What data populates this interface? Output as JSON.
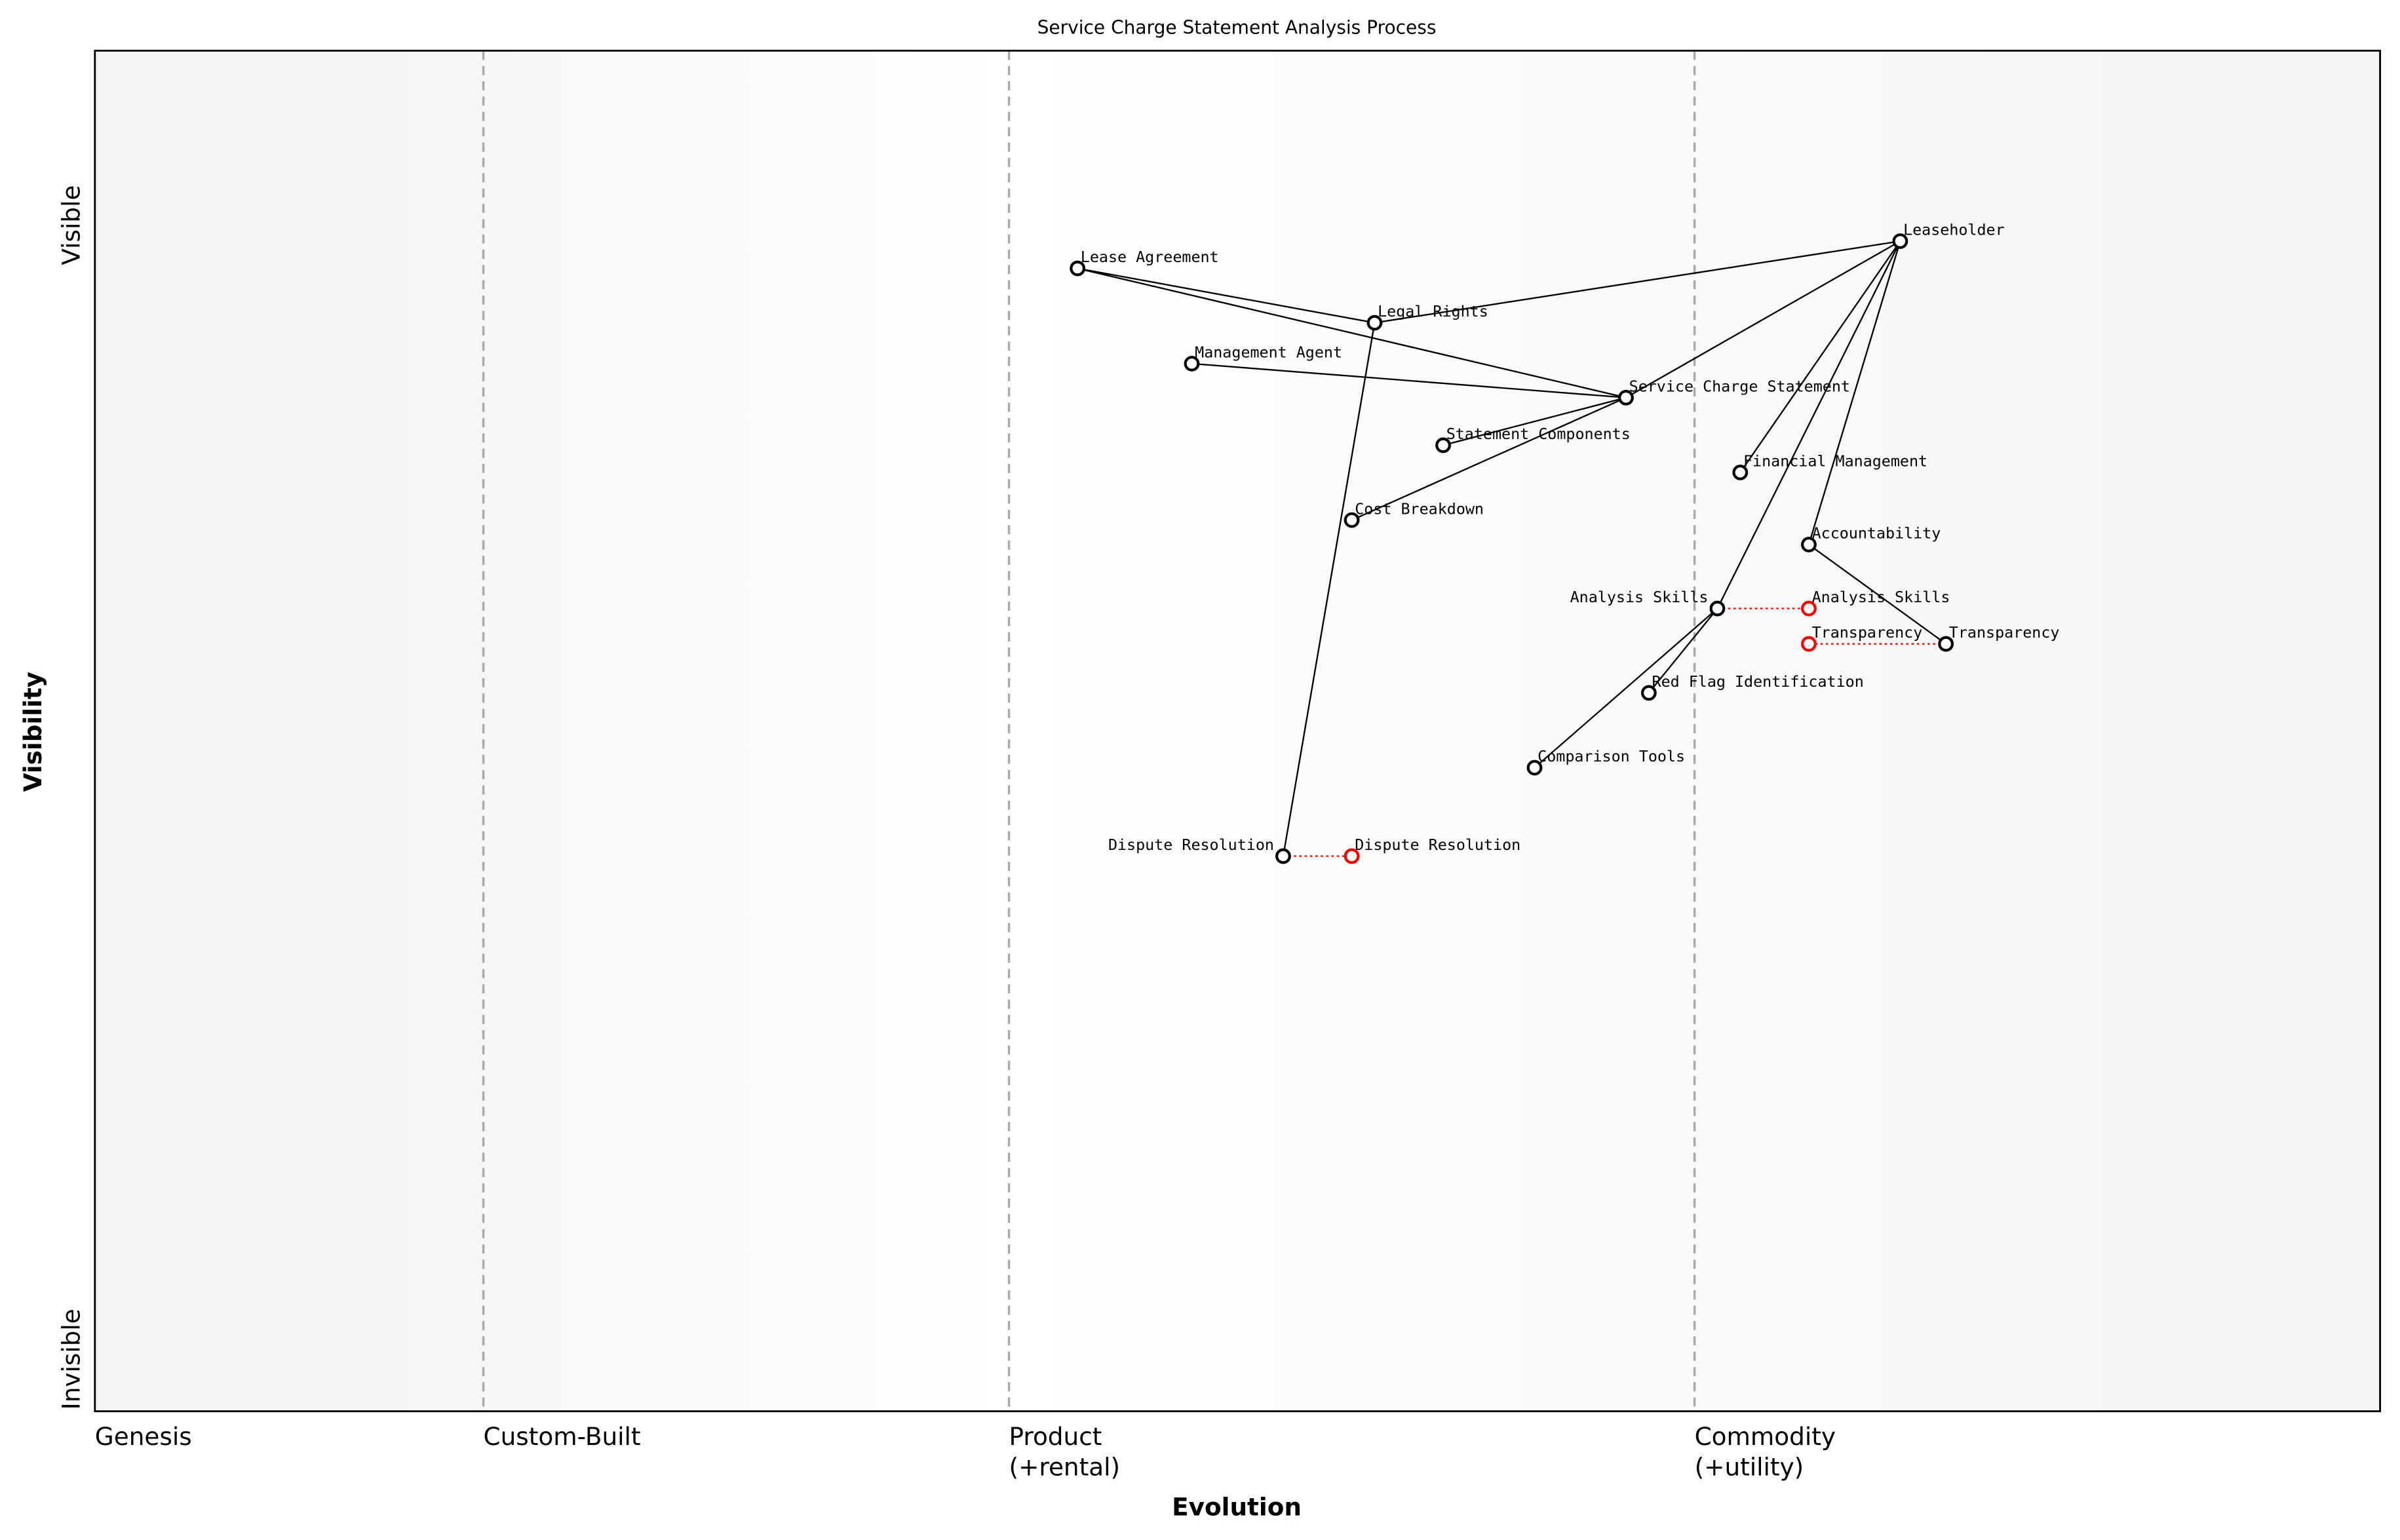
{
  "chart_data": {
    "type": "wardley-map",
    "title": "Service Charge Statement Analysis Process",
    "xlabel": "Evolution",
    "ylabel": "Visibility",
    "y_ticks": {
      "top": "Visible",
      "bottom": "Invisible"
    },
    "x_stages": [
      {
        "label": "Genesis",
        "at": 0.0
      },
      {
        "label": "Custom-Built",
        "at": 0.17
      },
      {
        "label": "Product\n(+rental)",
        "at": 0.4
      },
      {
        "label": "Commodity\n(+utility)",
        "at": 0.7
      }
    ],
    "xlim": [
      0,
      1
    ],
    "ylim": [
      0,
      1
    ],
    "components": [
      {
        "id": "leaseholder",
        "name": "Leaseholder",
        "evolution": 0.79,
        "visibility": 0.86
      },
      {
        "id": "lease-agreement",
        "name": "Lease Agreement",
        "evolution": 0.43,
        "visibility": 0.84
      },
      {
        "id": "legal-rights",
        "name": "Legal Rights",
        "evolution": 0.56,
        "visibility": 0.8
      },
      {
        "id": "management-agent",
        "name": "Management Agent",
        "evolution": 0.48,
        "visibility": 0.77
      },
      {
        "id": "service-charge-statement",
        "name": "Service Charge Statement",
        "evolution": 0.67,
        "visibility": 0.745
      },
      {
        "id": "statement-components",
        "name": "Statement Components",
        "evolution": 0.59,
        "visibility": 0.71
      },
      {
        "id": "financial-management",
        "name": "Financial Management",
        "evolution": 0.72,
        "visibility": 0.69
      },
      {
        "id": "cost-breakdown",
        "name": "Cost Breakdown",
        "evolution": 0.55,
        "visibility": 0.655
      },
      {
        "id": "accountability",
        "name": "Accountability",
        "evolution": 0.75,
        "visibility": 0.637
      },
      {
        "id": "analysis-skills",
        "name": "Analysis Skills",
        "evolution": 0.71,
        "visibility": 0.59
      },
      {
        "id": "transparency",
        "name": "Transparency",
        "evolution": 0.81,
        "visibility": 0.564
      },
      {
        "id": "red-flag-identification",
        "name": "Red Flag Identification",
        "evolution": 0.68,
        "visibility": 0.528
      },
      {
        "id": "comparison-tools",
        "name": "Comparison Tools",
        "evolution": 0.63,
        "visibility": 0.473
      },
      {
        "id": "dispute-resolution",
        "name": "Dispute Resolution",
        "evolution": 0.52,
        "visibility": 0.408
      }
    ],
    "evolved": [
      {
        "from": "analysis-skills",
        "name": "Analysis Skills",
        "evolution": 0.75,
        "visibility": 0.59
      },
      {
        "from": "transparency",
        "name": "Transparency",
        "evolution": 0.75,
        "visibility": 0.564
      },
      {
        "from": "dispute-resolution",
        "name": "Dispute Resolution",
        "evolution": 0.55,
        "visibility": 0.408
      }
    ],
    "links": [
      [
        "leaseholder",
        "legal-rights"
      ],
      [
        "leaseholder",
        "service-charge-statement"
      ],
      [
        "leaseholder",
        "financial-management"
      ],
      [
        "leaseholder",
        "analysis-skills"
      ],
      [
        "leaseholder",
        "accountability"
      ],
      [
        "lease-agreement",
        "legal-rights"
      ],
      [
        "lease-agreement",
        "service-charge-statement"
      ],
      [
        "management-agent",
        "service-charge-statement"
      ],
      [
        "statement-components",
        "service-charge-statement"
      ],
      [
        "cost-breakdown",
        "service-charge-statement"
      ],
      [
        "legal-rights",
        "dispute-resolution"
      ],
      [
        "analysis-skills",
        "comparison-tools"
      ],
      [
        "analysis-skills",
        "red-flag-identification"
      ],
      [
        "accountability",
        "transparency"
      ]
    ],
    "colors": {
      "component": "#000000",
      "evolved": "#ff0000",
      "stage_line": "#aaaaaa",
      "evolve_link": "#ff0000"
    }
  }
}
